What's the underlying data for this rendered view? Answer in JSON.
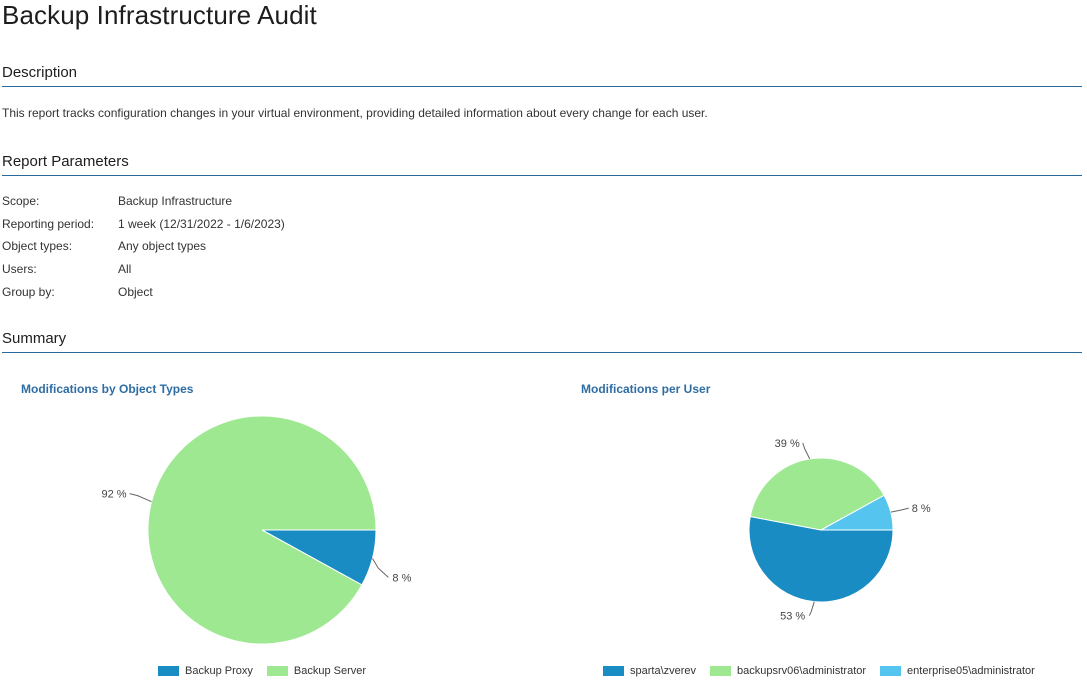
{
  "title": "Backup Infrastructure Audit",
  "sections": {
    "description_heading": "Description",
    "description_text": "This report tracks configuration changes in your virtual environment, providing detailed information about every change for each user.",
    "parameters_heading": "Report Parameters",
    "summary_heading": "Summary"
  },
  "parameters": [
    {
      "label": "Scope:",
      "value": "Backup Infrastructure"
    },
    {
      "label": "Reporting period:",
      "value": "1 week (12/31/2022 - 1/6/2023)"
    },
    {
      "label": "Object types:",
      "value": "Any object types"
    },
    {
      "label": "Users:",
      "value": "All"
    },
    {
      "label": "Group by:",
      "value": "Object"
    }
  ],
  "chart_data": [
    {
      "type": "pie",
      "title": "Modifications by Object Types",
      "slices": [
        {
          "label": "Backup Proxy",
          "value": 8,
          "display": "8 %",
          "color": "#1a8cc4"
        },
        {
          "label": "Backup Server",
          "value": 92,
          "display": "92 %",
          "color": "#9de891"
        }
      ],
      "legend_position": "bottom"
    },
    {
      "type": "pie",
      "title": "Modifications per User",
      "slices": [
        {
          "label": "sparta\\zverev",
          "value": 53,
          "display": "53 %",
          "color": "#1a8cc4"
        },
        {
          "label": "backupsrv06\\administrator",
          "value": 39,
          "display": "39 %",
          "color": "#9de891"
        },
        {
          "label": "enterprise05\\administrator",
          "value": 8,
          "display": "8 %",
          "color": "#55c4ee"
        }
      ],
      "legend_position": "bottom"
    }
  ]
}
